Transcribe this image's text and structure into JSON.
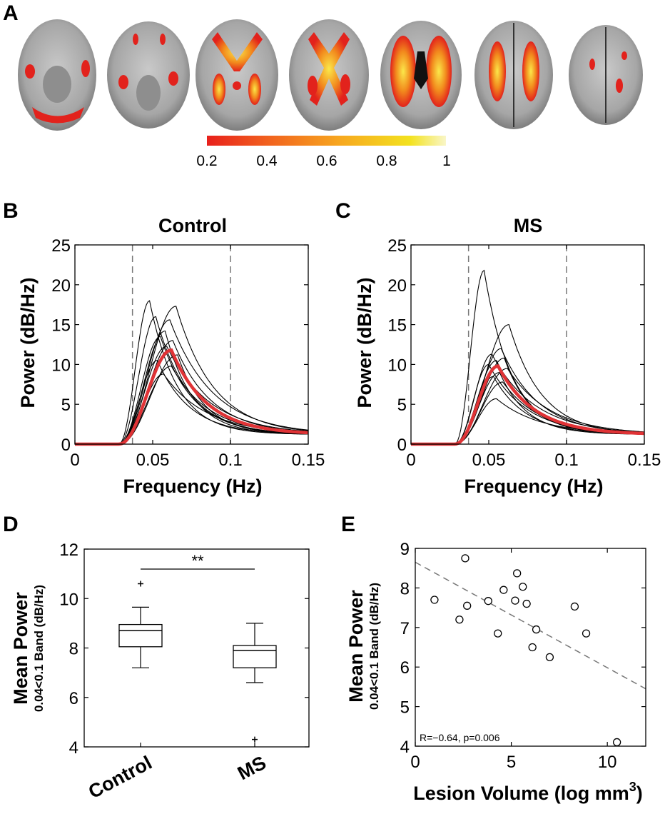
{
  "panels": {
    "a": "A",
    "b": "B",
    "c": "C",
    "d": "D",
    "e": "E"
  },
  "colorbar": {
    "ticks": [
      "0.2",
      "0.4",
      "0.6",
      "0.8",
      "1"
    ],
    "colors": [
      "#e8201c",
      "#f1601e",
      "#f7a61f",
      "#f3e21f",
      "#f9f6c8"
    ]
  },
  "colors": {
    "mean_line": "#e03336",
    "subject_line": "#000000",
    "dashed": "#777777"
  },
  "chart_data": [
    {
      "id": "B",
      "type": "line",
      "title": "Control",
      "xlabel": "Frequency (Hz)",
      "ylabel": "Power (dB/Hz)",
      "xlim": [
        0,
        0.15
      ],
      "ylim": [
        0,
        25
      ],
      "xticks": [
        "0",
        "0.05",
        "0.1",
        "0.15"
      ],
      "yticks": [
        "0",
        "5",
        "10",
        "15",
        "20",
        "25"
      ],
      "band_lines": [
        0.037,
        0.1
      ],
      "mean_peak": {
        "x": 0.062,
        "y": 11.8
      },
      "subject_peaks": [
        {
          "x": 0.048,
          "y": 18.0
        },
        {
          "x": 0.052,
          "y": 16.0
        },
        {
          "x": 0.065,
          "y": 17.3
        },
        {
          "x": 0.061,
          "y": 15.6
        },
        {
          "x": 0.058,
          "y": 14.2
        },
        {
          "x": 0.055,
          "y": 13.5
        },
        {
          "x": 0.063,
          "y": 13.0
        },
        {
          "x": 0.059,
          "y": 12.3
        },
        {
          "x": 0.066,
          "y": 11.2
        },
        {
          "x": 0.053,
          "y": 10.5
        },
        {
          "x": 0.062,
          "y": 9.8
        },
        {
          "x": 0.057,
          "y": 8.8
        }
      ]
    },
    {
      "id": "C",
      "type": "line",
      "title": "MS",
      "xlabel": "Frequency (Hz)",
      "ylabel": "Power (dB/Hz)",
      "xlim": [
        0,
        0.15
      ],
      "ylim": [
        0,
        25
      ],
      "xticks": [
        "0",
        "0.05",
        "0.1",
        "0.15"
      ],
      "yticks": [
        "0",
        "5",
        "10",
        "15",
        "20",
        "25"
      ],
      "band_lines": [
        0.037,
        0.1
      ],
      "mean_peak": {
        "x": 0.056,
        "y": 9.8
      },
      "subject_peaks": [
        {
          "x": 0.047,
          "y": 21.8
        },
        {
          "x": 0.063,
          "y": 15.0
        },
        {
          "x": 0.058,
          "y": 12.0
        },
        {
          "x": 0.052,
          "y": 11.3
        },
        {
          "x": 0.06,
          "y": 10.8
        },
        {
          "x": 0.055,
          "y": 10.5
        },
        {
          "x": 0.05,
          "y": 10.0
        },
        {
          "x": 0.062,
          "y": 9.5
        },
        {
          "x": 0.057,
          "y": 9.0
        },
        {
          "x": 0.053,
          "y": 8.5
        },
        {
          "x": 0.059,
          "y": 7.8
        },
        {
          "x": 0.055,
          "y": 5.7
        }
      ]
    },
    {
      "id": "D",
      "type": "box",
      "ylabel": "Mean Power",
      "ylabel_sub": "0.04<0.1 Band (dB/Hz)",
      "ylim": [
        4,
        12
      ],
      "yticks": [
        "4",
        "6",
        "8",
        "10",
        "12"
      ],
      "categories": [
        "Control",
        "MS"
      ],
      "boxes": [
        {
          "whisker_low": 7.2,
          "q1": 8.05,
          "median": 8.7,
          "q3": 8.95,
          "whisker_high": 9.65,
          "outliers": [
            10.6
          ]
        },
        {
          "whisker_low": 6.6,
          "q1": 7.2,
          "median": 7.9,
          "q3": 8.1,
          "whisker_high": 9.0,
          "outliers": [
            4.3
          ]
        }
      ],
      "significance": "**"
    },
    {
      "id": "E",
      "type": "scatter",
      "xlabel": "Lesion Volume (log mm",
      "xlabel_sup": "3",
      "xlabel_tail": ")",
      "ylabel": "Mean Power",
      "ylabel_sub": "0.04<0.1 Band (dB/Hz)",
      "xlim": [
        0,
        12
      ],
      "ylim": [
        4,
        9
      ],
      "xticks": [
        "0",
        "5",
        "10"
      ],
      "yticks": [
        "4",
        "5",
        "6",
        "7",
        "8",
        "9"
      ],
      "points": [
        {
          "x": 1.0,
          "y": 7.7
        },
        {
          "x": 2.3,
          "y": 7.2
        },
        {
          "x": 2.6,
          "y": 8.75
        },
        {
          "x": 2.7,
          "y": 7.55
        },
        {
          "x": 3.8,
          "y": 7.67
        },
        {
          "x": 4.3,
          "y": 6.85
        },
        {
          "x": 4.6,
          "y": 7.95
        },
        {
          "x": 5.2,
          "y": 7.68
        },
        {
          "x": 5.3,
          "y": 8.37
        },
        {
          "x": 5.6,
          "y": 8.03
        },
        {
          "x": 5.8,
          "y": 7.6
        },
        {
          "x": 6.1,
          "y": 6.5
        },
        {
          "x": 6.3,
          "y": 6.95
        },
        {
          "x": 7.0,
          "y": 6.25
        },
        {
          "x": 8.3,
          "y": 7.53
        },
        {
          "x": 8.9,
          "y": 6.85
        },
        {
          "x": 10.5,
          "y": 4.1
        }
      ],
      "fit": {
        "x0": 0,
        "y0": 8.65,
        "x1": 12,
        "y1": 5.45
      },
      "stat": "R=−0.64, p=0.006"
    }
  ]
}
